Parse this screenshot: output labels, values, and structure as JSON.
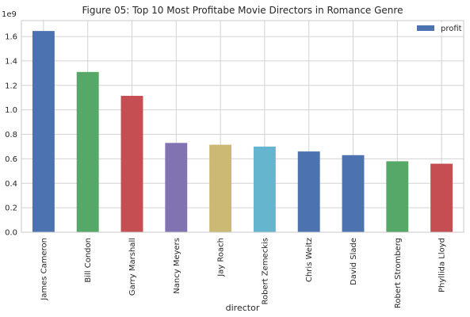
{
  "chart_data": {
    "type": "bar",
    "title": "Figure 05: Top 10 Most Profitabe Movie Directors in Romance Genre",
    "xlabel": "director",
    "ylabel": "",
    "y_offset_label": "1e9",
    "ylim": [
      0,
      1.73
    ],
    "yticks": [
      "0.0",
      "0.2",
      "0.4",
      "0.6",
      "0.8",
      "1.0",
      "1.2",
      "1.4",
      "1.6"
    ],
    "grid": true,
    "legend_position": "top-right",
    "categories": [
      "James Cameron",
      "Bill Condon",
      "Garry Marshall",
      "Nancy Meyers",
      "Jay Roach",
      "Robert Zemeckis",
      "Chris Weitz",
      "David Slade",
      "Robert Stromberg",
      "Phyllida Lloyd"
    ],
    "series": [
      {
        "name": "profit",
        "values": [
          1.645,
          1.31,
          1.115,
          0.73,
          0.715,
          0.7,
          0.66,
          0.63,
          0.58,
          0.56
        ],
        "colors": [
          "#4c72b0",
          "#55a868",
          "#c44e52",
          "#8172b2",
          "#ccb974",
          "#64b5cd",
          "#4c72b0",
          "#4c72b0",
          "#55a868",
          "#c44e52"
        ]
      }
    ],
    "legend_swatch_color": "#4c72b0"
  }
}
